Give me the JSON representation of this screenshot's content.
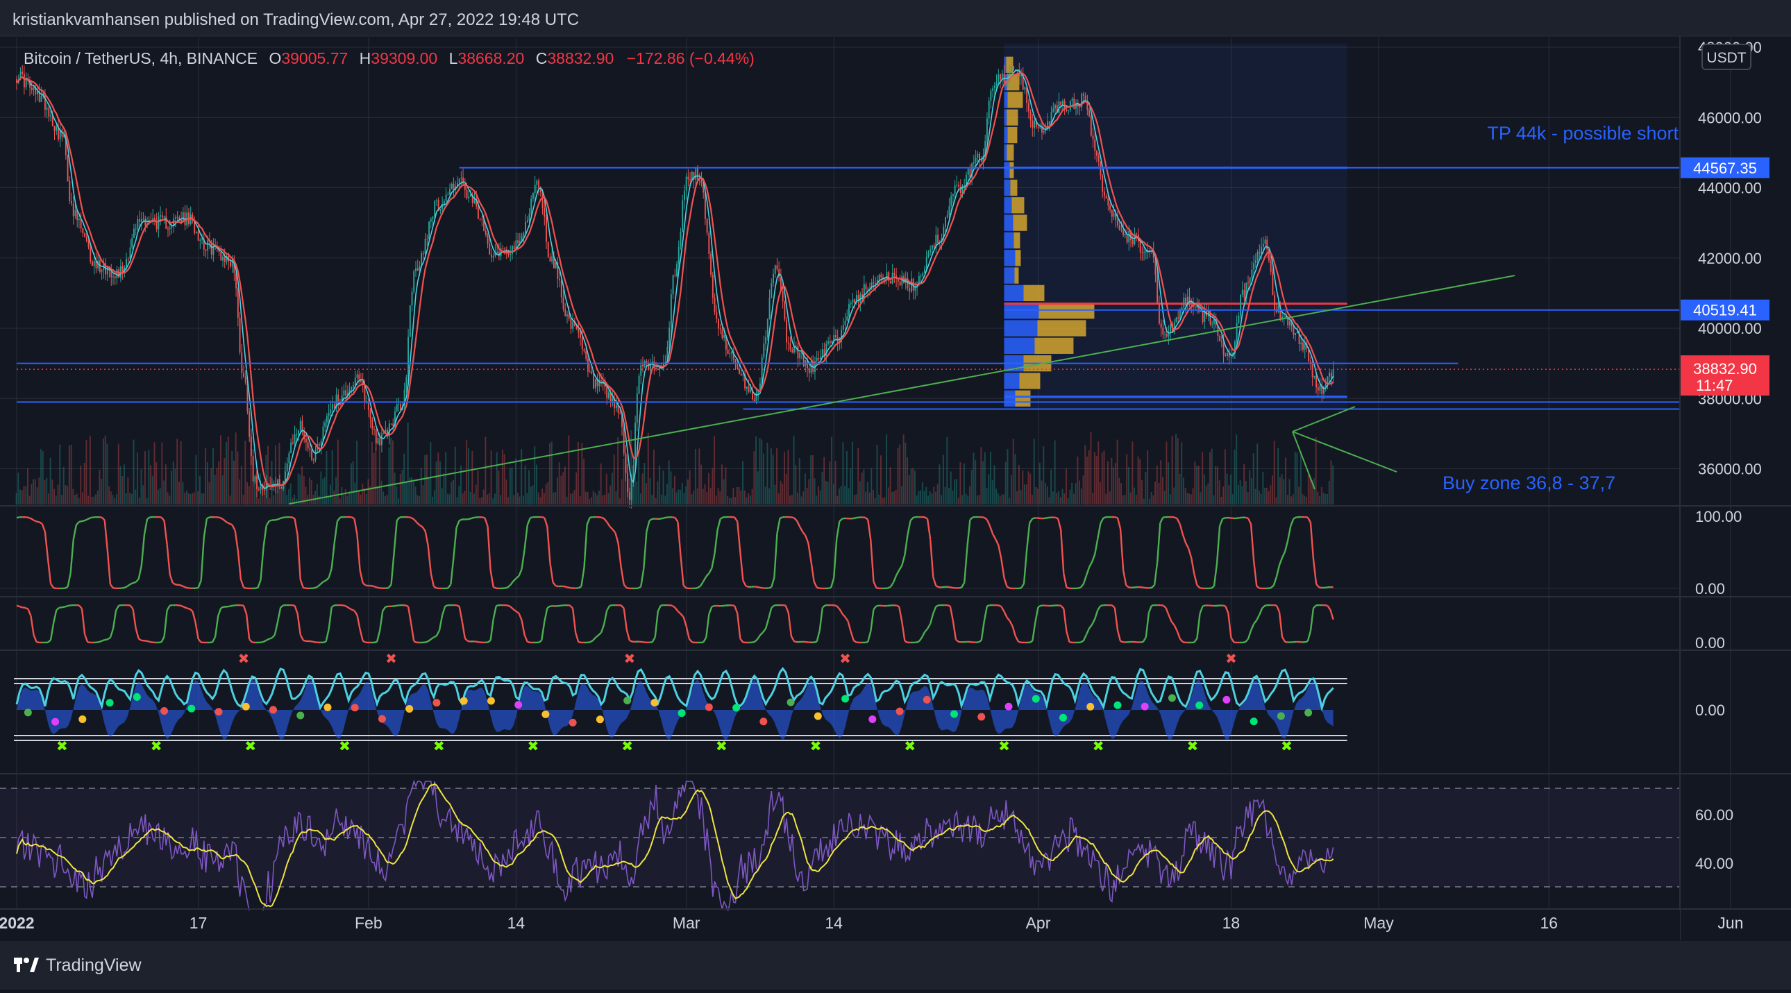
{
  "header": {
    "publisher_line": "kristiankvamhansen published on TradingView.com, Apr 27, 2022 19:48 UTC"
  },
  "symbol_bar": {
    "symbol": "Bitcoin / TetherUS, 4h, BINANCE",
    "open_label": "O",
    "open": "39005.77",
    "high_label": "H",
    "high": "39309.00",
    "low_label": "L",
    "low": "38668.20",
    "close_label": "C",
    "close": "38832.90",
    "change": "−172.86 (−0.44%)"
  },
  "currency_button": "USDT",
  "price_axis": {
    "ticks": [
      "48000.00",
      "46000.00",
      "44000.00",
      "42000.00",
      "40000.00",
      "38000.00",
      "36000.00"
    ],
    "badges": [
      {
        "label": "44567.35",
        "price": 44567.35,
        "color": "#2962ff"
      },
      {
        "label": "40519.41",
        "price": 40519.41,
        "color": "#2962ff"
      }
    ],
    "last_price_badge": {
      "price_label": "38832.90",
      "countdown": "11:47",
      "price": 38832.9,
      "color": "#f23645"
    }
  },
  "indicator_axes": {
    "pane1_ticks": [
      "100.00",
      "0.00"
    ],
    "pane2_ticks": [
      "0.00"
    ],
    "pane3_ticks": [
      "0.00"
    ],
    "pane4_ticks": [
      "60.00",
      "40.00"
    ]
  },
  "time_axis": {
    "labels": [
      {
        "label": "2022",
        "bold": true
      },
      {
        "label": "17",
        "bold": false
      },
      {
        "label": "Feb",
        "bold": false
      },
      {
        "label": "14",
        "bold": false
      },
      {
        "label": "Mar",
        "bold": false
      },
      {
        "label": "14",
        "bold": false
      },
      {
        "label": "Apr",
        "bold": false
      },
      {
        "label": "18",
        "bold": false
      },
      {
        "label": "May",
        "bold": false
      },
      {
        "label": "16",
        "bold": false
      },
      {
        "label": "Jun",
        "bold": false
      }
    ]
  },
  "annotations": {
    "tp_note": "TP 44k - possible short",
    "buy_note": "Buy zone 36,8 - 37,7"
  },
  "footer": {
    "brand": "TradingView"
  },
  "colors": {
    "background": "#131722",
    "grid": "#2a2e39",
    "up": "#26a69a",
    "down": "#ef5350",
    "blue_line": "#2962ff",
    "trend_green": "#4caf50",
    "rsi_purple": "#7e57c2",
    "rsi_signal": "#f0e442",
    "text_blue": "#2962ff"
  },
  "chart_data": {
    "type": "candlestick",
    "title": "Bitcoin / TetherUS, 4h, BINANCE",
    "x_range": [
      "2022-01-01",
      "2022-06-06"
    ],
    "ylim": [
      35000,
      48500
    ],
    "grid": true,
    "price_path": [
      [
        "2022-01-01",
        47200
      ],
      [
        "2022-01-03",
        46600
      ],
      [
        "2022-01-05",
        45500
      ],
      [
        "2022-01-06",
        43200
      ],
      [
        "2022-01-08",
        41800
      ],
      [
        "2022-01-10",
        41600
      ],
      [
        "2022-01-12",
        43100
      ],
      [
        "2022-01-14",
        43000
      ],
      [
        "2022-01-16",
        43100
      ],
      [
        "2022-01-18",
        42300
      ],
      [
        "2022-01-20",
        41900
      ],
      [
        "2022-01-21",
        38600
      ],
      [
        "2022-01-22",
        35600
      ],
      [
        "2022-01-24",
        35500
      ],
      [
        "2022-01-26",
        37200
      ],
      [
        "2022-01-27",
        36400
      ],
      [
        "2022-01-29",
        37900
      ],
      [
        "2022-01-31",
        38500
      ],
      [
        "2022-02-02",
        36800
      ],
      [
        "2022-02-04",
        37800
      ],
      [
        "2022-02-05",
        41500
      ],
      [
        "2022-02-07",
        43500
      ],
      [
        "2022-02-09",
        44200
      ],
      [
        "2022-02-10",
        43600
      ],
      [
        "2022-02-12",
        42200
      ],
      [
        "2022-02-14",
        42300
      ],
      [
        "2022-02-16",
        44100
      ],
      [
        "2022-02-17",
        42000
      ],
      [
        "2022-02-19",
        40000
      ],
      [
        "2022-02-21",
        38400
      ],
      [
        "2022-02-23",
        37700
      ],
      [
        "2022-02-24",
        35200
      ],
      [
        "2022-02-25",
        39000
      ],
      [
        "2022-02-27",
        38900
      ],
      [
        "2022-02-28",
        41500
      ],
      [
        "2022-03-01",
        44200
      ],
      [
        "2022-03-02",
        44400
      ],
      [
        "2022-03-04",
        39800
      ],
      [
        "2022-03-06",
        38500
      ],
      [
        "2022-03-07",
        38000
      ],
      [
        "2022-03-09",
        41800
      ],
      [
        "2022-03-10",
        39500
      ],
      [
        "2022-03-12",
        38900
      ],
      [
        "2022-03-14",
        39600
      ],
      [
        "2022-03-16",
        40900
      ],
      [
        "2022-03-18",
        41500
      ],
      [
        "2022-03-21",
        41200
      ],
      [
        "2022-03-23",
        42500
      ],
      [
        "2022-03-25",
        44000
      ],
      [
        "2022-03-27",
        44900
      ],
      [
        "2022-03-28",
        47000
      ],
      [
        "2022-03-30",
        47300
      ],
      [
        "2022-04-01",
        45600
      ],
      [
        "2022-04-03",
        46300
      ],
      [
        "2022-04-05",
        46500
      ],
      [
        "2022-04-06",
        45200
      ],
      [
        "2022-04-07",
        43500
      ],
      [
        "2022-04-09",
        42600
      ],
      [
        "2022-04-11",
        42100
      ],
      [
        "2022-04-12",
        39700
      ],
      [
        "2022-04-14",
        40700
      ],
      [
        "2022-04-16",
        40300
      ],
      [
        "2022-04-18",
        39000
      ],
      [
        "2022-04-19",
        41000
      ],
      [
        "2022-04-21",
        42400
      ],
      [
        "2022-04-22",
        40500
      ],
      [
        "2022-04-24",
        39700
      ],
      [
        "2022-04-26",
        38200
      ],
      [
        "2022-04-27",
        38833
      ]
    ],
    "horizontal_levels": [
      {
        "price": 44567.35,
        "from": "2022-02-09",
        "to": "2022-06-06",
        "color": "#2962ff"
      },
      {
        "price": 40519.41,
        "from": "2022-03-29",
        "to": "2022-06-06",
        "color": "#2962ff"
      },
      {
        "price": 38833,
        "from": "2022-01-01",
        "to": "2022-06-06",
        "color": "#f23645",
        "dotted": true
      },
      {
        "price": 39000,
        "from": "2022-01-01",
        "to": "2022-05-08",
        "color": "#2962ff"
      },
      {
        "price": 37900,
        "from": "2022-01-01",
        "to": "2022-06-06",
        "color": "#2962ff"
      },
      {
        "price": 37700,
        "from": "2022-03-06",
        "to": "2022-06-06",
        "color": "#2962ff"
      }
    ],
    "trendline": {
      "from": [
        "2022-01-25",
        35000
      ],
      "to": [
        "2022-05-13",
        41500
      ],
      "color": "#4caf50"
    },
    "volume_profile": {
      "range_from": "2022-03-29",
      "range_to": "2022-04-27",
      "levels": [
        {
          "price": 47500,
          "up": 3,
          "down": 10
        },
        {
          "price": 47000,
          "up": 4,
          "down": 18
        },
        {
          "price": 46500,
          "up": 5,
          "down": 22
        },
        {
          "price": 46000,
          "up": 4,
          "down": 16
        },
        {
          "price": 45500,
          "up": 5,
          "down": 14
        },
        {
          "price": 45000,
          "up": 4,
          "down": 10
        },
        {
          "price": 44500,
          "up": 8,
          "down": 6
        },
        {
          "price": 44000,
          "up": 9,
          "down": 10
        },
        {
          "price": 43500,
          "up": 11,
          "down": 18
        },
        {
          "price": 43000,
          "up": 13,
          "down": 20
        },
        {
          "price": 42500,
          "up": 14,
          "down": 9
        },
        {
          "price": 42000,
          "up": 16,
          "down": 8
        },
        {
          "price": 41500,
          "up": 15,
          "down": 6
        },
        {
          "price": 41000,
          "up": 28,
          "down": 30
        },
        {
          "price": 40500,
          "up": 50,
          "down": 80
        },
        {
          "price": 40000,
          "up": 48,
          "down": 70
        },
        {
          "price": 39500,
          "up": 44,
          "down": 56
        },
        {
          "price": 39000,
          "up": 28,
          "down": 40
        },
        {
          "price": 38500,
          "up": 22,
          "down": 30
        },
        {
          "price": 38000,
          "up": 16,
          "down": 22
        }
      ],
      "poc_price": 40700
    }
  }
}
